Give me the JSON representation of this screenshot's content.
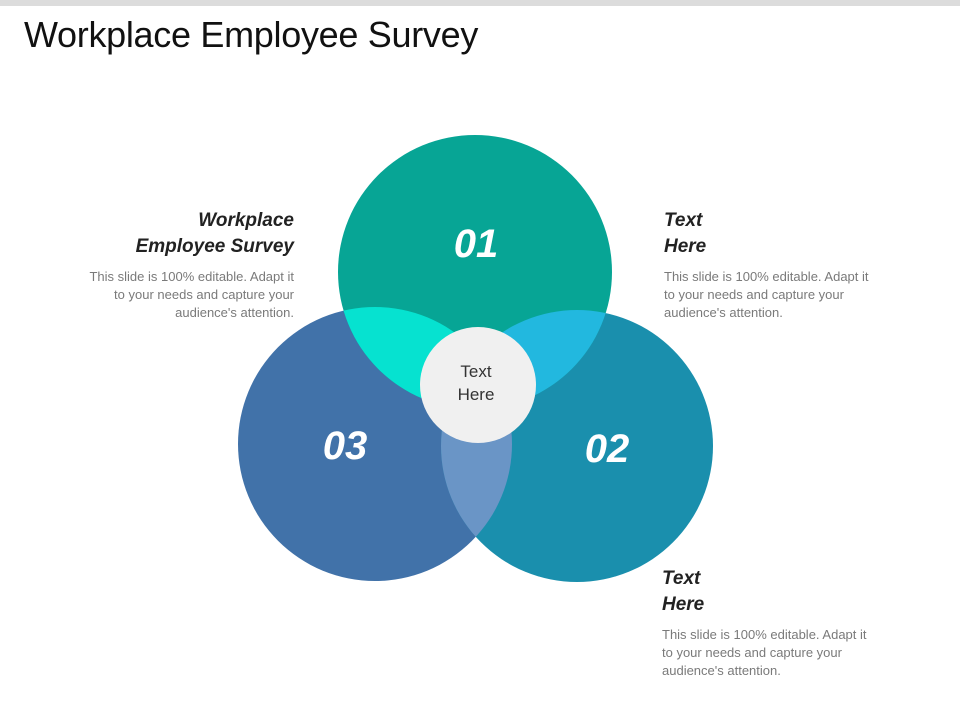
{
  "title": "Workplace Employee Survey",
  "colors": {
    "circle_01": "#07a595",
    "circle_02": "#1a8fad",
    "circle_03": "#4172a9",
    "overlap_01_03": "#06e2d0",
    "overlap_01_02": "#22b8df",
    "overlap_02_03": "#6a95c6",
    "center": "#f0f0f0"
  },
  "diagram": {
    "circles": [
      {
        "label": "01"
      },
      {
        "label": "02"
      },
      {
        "label": "03"
      }
    ],
    "center_lines": [
      "Text",
      "Here"
    ]
  },
  "blocks": {
    "left": {
      "heading_lines": [
        "Workplace",
        "Employee Survey"
      ],
      "desc_lines": [
        "This slide is 100% editable. Adapt it",
        "to your needs and capture your",
        "audience's attention."
      ]
    },
    "top_right": {
      "heading_lines": [
        "Text",
        "Here"
      ],
      "desc_lines": [
        "This slide is 100% editable. Adapt it",
        "to your needs and capture your",
        "audience's attention."
      ]
    },
    "bottom_right": {
      "heading_lines": [
        "Text",
        "Here"
      ],
      "desc_lines": [
        "This slide is 100% editable. Adapt it",
        "to your needs and capture your",
        "audience's attention."
      ]
    }
  }
}
